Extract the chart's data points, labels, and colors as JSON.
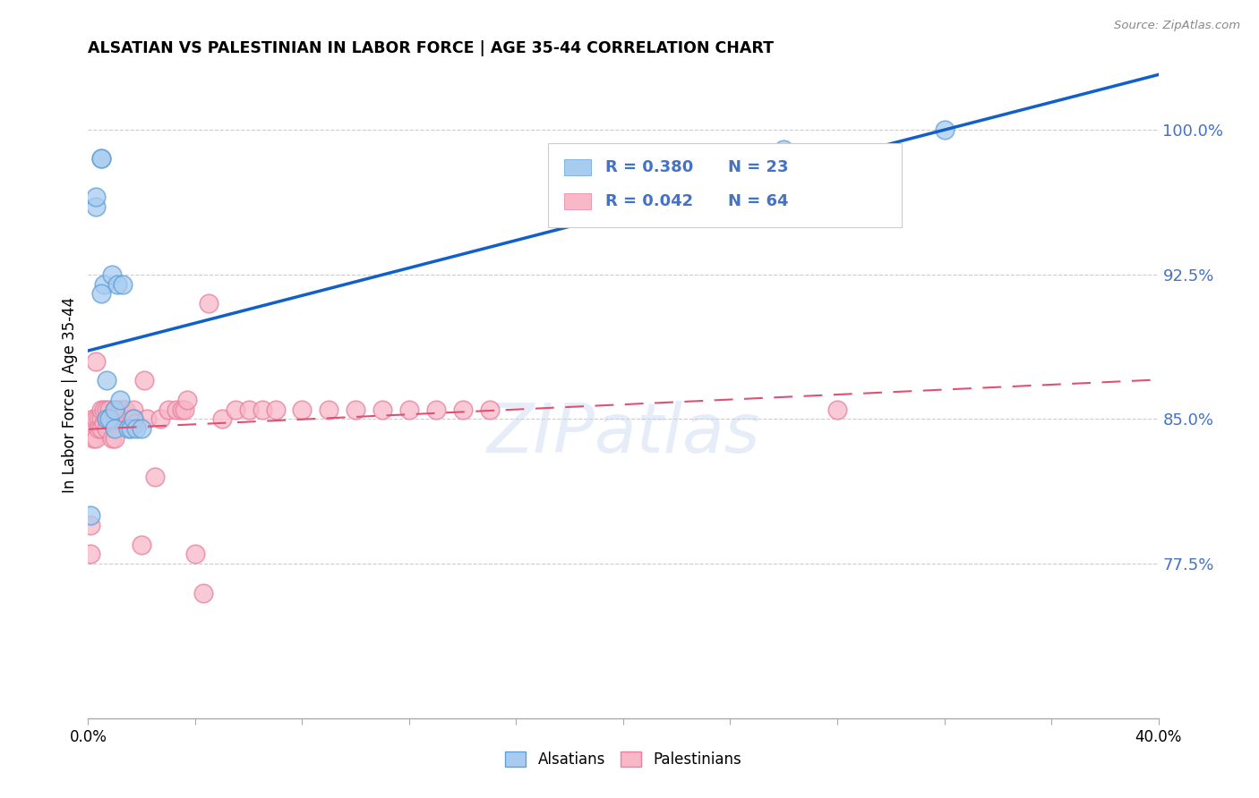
{
  "title": "ALSATIAN VS PALESTINIAN IN LABOR FORCE | AGE 35-44 CORRELATION CHART",
  "source": "Source: ZipAtlas.com",
  "ylabel": "In Labor Force | Age 35-44",
  "ytick_labels": [
    "77.5%",
    "85.0%",
    "92.5%",
    "100.0%"
  ],
  "ytick_values": [
    0.775,
    0.85,
    0.925,
    1.0
  ],
  "xlim": [
    0.0,
    0.4
  ],
  "ylim": [
    0.695,
    1.03
  ],
  "alsatian_color_fill": "#A8CCF0",
  "alsatian_color_edge": "#5FA0D8",
  "palestinian_color_fill": "#F8B8C8",
  "palestinian_color_edge": "#E880A0",
  "alsatian_line_color": "#1060C8",
  "palestinian_line_color": "#E05070",
  "watermark": "ZIPatlas",
  "legend_label1": "R = 0.380",
  "legend_n1": "N = 23",
  "legend_label2": "R = 0.042",
  "legend_n2": "N = 64",
  "legend_color1": "#4472C4",
  "legend_color2": "#4472C4",
  "alsatian_x": [
    0.001,
    0.003,
    0.003,
    0.005,
    0.005,
    0.006,
    0.007,
    0.007,
    0.008,
    0.009,
    0.01,
    0.01,
    0.011,
    0.012,
    0.013,
    0.015,
    0.016,
    0.017,
    0.018,
    0.02,
    0.26,
    0.32,
    0.005
  ],
  "alsatian_y": [
    0.8,
    0.96,
    0.965,
    0.985,
    0.985,
    0.92,
    0.87,
    0.85,
    0.85,
    0.925,
    0.845,
    0.855,
    0.92,
    0.86,
    0.92,
    0.845,
    0.845,
    0.85,
    0.845,
    0.845,
    0.99,
    1.0,
    0.915
  ],
  "palestinian_x": [
    0.001,
    0.001,
    0.002,
    0.002,
    0.003,
    0.003,
    0.003,
    0.004,
    0.004,
    0.005,
    0.005,
    0.005,
    0.006,
    0.006,
    0.007,
    0.007,
    0.007,
    0.008,
    0.008,
    0.009,
    0.009,
    0.01,
    0.01,
    0.01,
    0.011,
    0.011,
    0.012,
    0.012,
    0.013,
    0.013,
    0.014,
    0.014,
    0.015,
    0.016,
    0.017,
    0.017,
    0.018,
    0.02,
    0.021,
    0.022,
    0.025,
    0.027,
    0.03,
    0.033,
    0.035,
    0.036,
    0.037,
    0.04,
    0.043,
    0.045,
    0.05,
    0.055,
    0.06,
    0.065,
    0.07,
    0.08,
    0.09,
    0.1,
    0.11,
    0.12,
    0.13,
    0.14,
    0.15,
    0.28
  ],
  "palestinian_y": [
    0.795,
    0.78,
    0.85,
    0.84,
    0.85,
    0.84,
    0.88,
    0.85,
    0.845,
    0.85,
    0.845,
    0.855,
    0.855,
    0.848,
    0.85,
    0.845,
    0.855,
    0.855,
    0.85,
    0.848,
    0.84,
    0.855,
    0.848,
    0.84,
    0.85,
    0.855,
    0.855,
    0.85,
    0.855,
    0.85,
    0.848,
    0.855,
    0.85,
    0.848,
    0.855,
    0.85,
    0.848,
    0.785,
    0.87,
    0.85,
    0.82,
    0.85,
    0.855,
    0.855,
    0.855,
    0.855,
    0.86,
    0.78,
    0.76,
    0.91,
    0.85,
    0.855,
    0.855,
    0.855,
    0.855,
    0.855,
    0.855,
    0.855,
    0.855,
    0.855,
    0.855,
    0.855,
    0.855,
    0.855
  ]
}
